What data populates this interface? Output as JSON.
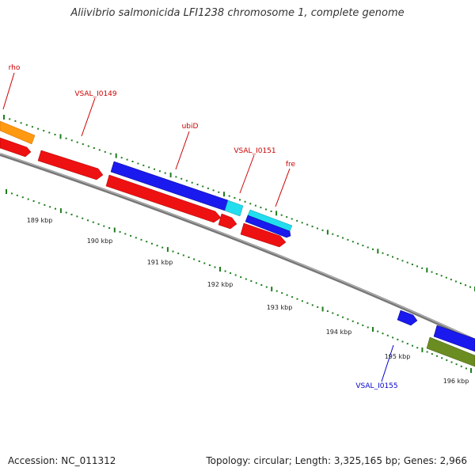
{
  "title": "Aliivibrio salmonicida LFI1238 chromosome 1, complete genome",
  "footer": {
    "accession": "Accession: NC_011312",
    "stats": "Topology: circular; Length: 3,325,165 bp; Genes: 2,966"
  },
  "colors": {
    "label_red": "#cc0000",
    "label_blue": "#0000cc",
    "backbone": "#8a8a8a",
    "tick_green": "#1e7d1e",
    "feature_red": "#ee1111",
    "feature_blue": "#1a1aee",
    "feature_cyan": "#22ddee",
    "feature_orange": "#ff9911",
    "feature_olive": "#6b8c21"
  },
  "scale_labels": [
    "189 kbp",
    "190 kbp",
    "191 kbp",
    "192 kbp",
    "193 kbp",
    "194 kbp",
    "195 kbp",
    "196 kbp"
  ],
  "gene_labels": [
    {
      "text": "rho",
      "color": "label_red"
    },
    {
      "text": "VSAL_I0149",
      "color": "label_red"
    },
    {
      "text": "ubiD",
      "color": "label_red"
    },
    {
      "text": "VSAL_I0151",
      "color": "label_red"
    },
    {
      "text": "fre",
      "color": "label_red"
    },
    {
      "text": "VSAL_I0155",
      "color": "label_blue"
    }
  ]
}
